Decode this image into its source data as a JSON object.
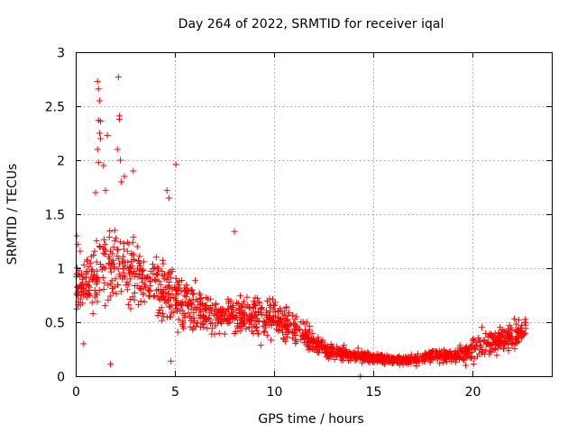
{
  "chart_data": {
    "type": "scatter",
    "title": "Day 264 of 2022, SRMTID for receiver iqal",
    "xlabel": "GPS time / hours",
    "ylabel": "SRMTID / TECUs",
    "xlim": [
      0,
      24
    ],
    "ylim": [
      0,
      3
    ],
    "x_ticks": [
      "0",
      "5",
      "10",
      "15",
      "20"
    ],
    "y_ticks": [
      "0",
      "0.5",
      "1",
      "1.5",
      "2",
      "2.5",
      "3"
    ],
    "grid": true,
    "marker": "plus",
    "color": "#ff0000",
    "series": [
      {
        "name": "SRMTID",
        "envelope": [
          {
            "t": 0.0,
            "center": 0.85,
            "spread": 0.3
          },
          {
            "t": 1.0,
            "center": 0.9,
            "spread": 0.45
          },
          {
            "t": 2.0,
            "center": 1.05,
            "spread": 0.5
          },
          {
            "t": 3.0,
            "center": 0.95,
            "spread": 0.4
          },
          {
            "t": 4.0,
            "center": 0.85,
            "spread": 0.35
          },
          {
            "t": 5.0,
            "center": 0.75,
            "spread": 0.35
          },
          {
            "t": 6.0,
            "center": 0.62,
            "spread": 0.25
          },
          {
            "t": 7.0,
            "center": 0.55,
            "spread": 0.2
          },
          {
            "t": 8.0,
            "center": 0.55,
            "spread": 0.22
          },
          {
            "t": 9.0,
            "center": 0.55,
            "spread": 0.22
          },
          {
            "t": 10.0,
            "center": 0.55,
            "spread": 0.22
          },
          {
            "t": 11.0,
            "center": 0.45,
            "spread": 0.2
          },
          {
            "t": 12.0,
            "center": 0.3,
            "spread": 0.12
          },
          {
            "t": 13.0,
            "center": 0.22,
            "spread": 0.08
          },
          {
            "t": 14.0,
            "center": 0.2,
            "spread": 0.07
          },
          {
            "t": 15.0,
            "center": 0.17,
            "spread": 0.06
          },
          {
            "t": 16.0,
            "center": 0.15,
            "spread": 0.05
          },
          {
            "t": 17.0,
            "center": 0.15,
            "spread": 0.06
          },
          {
            "t": 18.0,
            "center": 0.2,
            "spread": 0.1
          },
          {
            "t": 19.0,
            "center": 0.18,
            "spread": 0.08
          },
          {
            "t": 20.0,
            "center": 0.25,
            "spread": 0.15
          },
          {
            "t": 21.0,
            "center": 0.32,
            "spread": 0.15
          },
          {
            "t": 22.0,
            "center": 0.35,
            "spread": 0.15
          },
          {
            "t": 22.7,
            "center": 0.45,
            "spread": 0.15
          }
        ],
        "outliers": [
          {
            "x": 1.1,
            "y": 2.73
          },
          {
            "x": 1.15,
            "y": 2.66
          },
          {
            "x": 1.2,
            "y": 2.55
          },
          {
            "x": 1.15,
            "y": 2.37
          },
          {
            "x": 1.25,
            "y": 2.36
          },
          {
            "x": 1.2,
            "y": 2.25
          },
          {
            "x": 1.25,
            "y": 2.2
          },
          {
            "x": 1.6,
            "y": 2.23
          },
          {
            "x": 1.1,
            "y": 2.1
          },
          {
            "x": 1.15,
            "y": 1.98
          },
          {
            "x": 1.4,
            "y": 1.95
          },
          {
            "x": 2.15,
            "y": 2.77
          },
          {
            "x": 2.2,
            "y": 2.41
          },
          {
            "x": 2.2,
            "y": 2.38
          },
          {
            "x": 2.1,
            "y": 2.1
          },
          {
            "x": 2.25,
            "y": 2.0
          },
          {
            "x": 2.3,
            "y": 1.8
          },
          {
            "x": 2.45,
            "y": 1.85
          },
          {
            "x": 2.9,
            "y": 1.9
          },
          {
            "x": 1.0,
            "y": 1.7
          },
          {
            "x": 1.5,
            "y": 1.72
          },
          {
            "x": 5.05,
            "y": 1.96
          },
          {
            "x": 4.6,
            "y": 1.72
          },
          {
            "x": 4.7,
            "y": 1.65
          },
          {
            "x": 8.0,
            "y": 1.34
          },
          {
            "x": 0.05,
            "y": 1.3
          },
          {
            "x": 0.1,
            "y": 1.22
          },
          {
            "x": 1.75,
            "y": 0.11
          },
          {
            "x": 0.4,
            "y": 0.3
          },
          {
            "x": 4.8,
            "y": 0.14
          },
          {
            "x": 14.35,
            "y": 0.0
          }
        ]
      }
    ]
  }
}
